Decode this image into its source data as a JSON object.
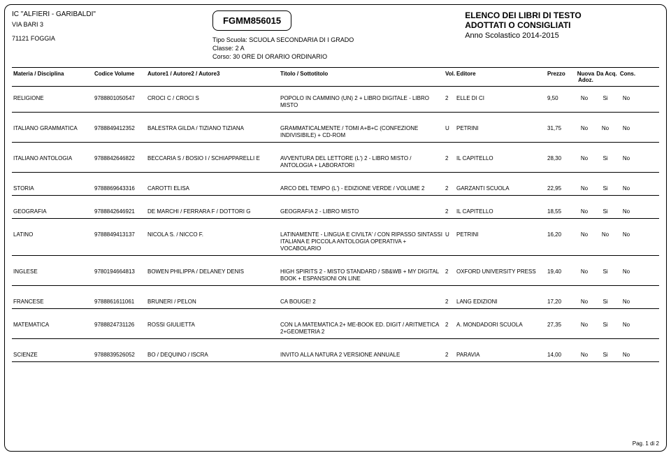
{
  "header": {
    "school_name": "IC \"ALFIERI - GARIBALDI\"",
    "address": "VIA BARI 3",
    "city_zip": "71121  FOGGIA",
    "school_code": "FGMM856015",
    "tipo_scuola_label": "Tipo Scuola:",
    "tipo_scuola": "SCUOLA SECONDARIA DI I GRADO",
    "classe_label": "Classe:",
    "classe": "2 A",
    "corso_label": "Corso:",
    "corso": "30 ORE DI ORARIO ORDINARIO",
    "right_title1": "ELENCO DEI LIBRI DI TESTO",
    "right_title2": "ADOTTATI O CONSIGLIATI",
    "right_year": "Anno Scolastico 2014-2015"
  },
  "columns": {
    "materia": "Materia / Disciplina",
    "codice": "Codice Volume",
    "autore": "Autore1 / Autore2 / Autore3",
    "titolo": "Titolo / Sottotitolo",
    "vol": "Vol.",
    "editore": "Editore",
    "prezzo": "Prezzo",
    "nuova": "Nuova Adoz.",
    "da": "Da Acq.",
    "cons": "Cons."
  },
  "rows": [
    {
      "materia": "RELIGIONE",
      "codice": "9788801050547",
      "autore": "CROCI C / CROCI S",
      "titolo": "POPOLO IN CAMMINO (UN) 2 + LIBRO DIGITALE - LIBRO MISTO",
      "vol": "2",
      "editore": "ELLE DI CI",
      "prezzo": "9,50",
      "nuova": "No",
      "da": "Si",
      "cons": "No"
    },
    {
      "materia": "ITALIANO GRAMMATICA",
      "codice": "9788849412352",
      "autore": "BALESTRA GILDA / TIZIANO TIZIANA",
      "titolo": "GRAMMATICALMENTE / TOMI A+B+C (CONFEZIONE INDIVISIBILE) + CD-ROM",
      "vol": "U",
      "editore": "PETRINI",
      "prezzo": "31,75",
      "nuova": "No",
      "da": "No",
      "cons": "No"
    },
    {
      "materia": "ITALIANO ANTOLOGIA",
      "codice": "9788842646822",
      "autore": "BECCARIA S / BOSIO I / SCHIAPPARELLI E",
      "titolo": "AVVENTURA DEL LETTORE (L') 2 - LIBRO MISTO / ANTOLOGIA + LABORATORI",
      "vol": "2",
      "editore": "IL CAPITELLO",
      "prezzo": "28,30",
      "nuova": "No",
      "da": "Si",
      "cons": "No"
    },
    {
      "materia": "STORIA",
      "codice": "9788869643316",
      "autore": "CAROTTI ELISA",
      "titolo": "ARCO DEL TEMPO (L') - EDIZIONE VERDE / VOLUME 2",
      "vol": "2",
      "editore": "GARZANTI SCUOLA",
      "prezzo": "22,95",
      "nuova": "No",
      "da": "Si",
      "cons": "No"
    },
    {
      "materia": "GEOGRAFIA",
      "codice": "9788842646921",
      "autore": "DE MARCHI / FERRARA F / DOTTORI G",
      "titolo": "GEOGRAFIA 2 - LIBRO MISTO",
      "vol": "2",
      "editore": "IL CAPITELLO",
      "prezzo": "18,55",
      "nuova": "No",
      "da": "Si",
      "cons": "No"
    },
    {
      "materia": "LATINO",
      "codice": "9788849413137",
      "autore": "NICOLA S. / NICCO F.",
      "titolo": "LATINAMENTE - LINGUA E CIVILTA' / CON RIPASSO SINTASSI ITALIANA E PICCOLA ANTOLOGIA OPERATIVA + VOCABOLARIO",
      "vol": "U",
      "editore": "PETRINI",
      "prezzo": "16,20",
      "nuova": "No",
      "da": "No",
      "cons": "No"
    },
    {
      "materia": "INGLESE",
      "codice": "9780194664813",
      "autore": "BOWEN PHILIPPA / DELANEY DENIS",
      "titolo": "HIGH SPIRITS  2 - MISTO STANDARD / SB&WB + MY DIGITAL BOOK + ESPANSIONI ON LINE",
      "vol": "2",
      "editore": "OXFORD UNIVERSITY PRESS",
      "prezzo": "19,40",
      "nuova": "No",
      "da": "Si",
      "cons": "No"
    },
    {
      "materia": "FRANCESE",
      "codice": "9788861611061",
      "autore": "BRUNERI / PELON",
      "titolo": "CA BOUGE! 2",
      "vol": "2",
      "editore": "LANG EDIZIONI",
      "prezzo": "17,20",
      "nuova": "No",
      "da": "Si",
      "cons": "No"
    },
    {
      "materia": "MATEMATICA",
      "codice": "9788824731126",
      "autore": "ROSSI GIULIETTA",
      "titolo": "CON LA MATEMATICA 2+ ME-BOOK  ED. DIGIT / ARITMETICA 2+GEOMETRIA 2",
      "vol": "2",
      "editore": "A. MONDADORI SCUOLA",
      "prezzo": "27,35",
      "nuova": "No",
      "da": "Si",
      "cons": "No"
    },
    {
      "materia": "SCIENZE",
      "codice": "9788839526052",
      "autore": "BO / DEQUINO / ISCRA",
      "titolo": "INVITO ALLA NATURA 2 VERSIONE ANNUALE",
      "vol": "2",
      "editore": "PARAVIA",
      "prezzo": "14,00",
      "nuova": "No",
      "da": "Si",
      "cons": "No"
    }
  ],
  "footer": {
    "page": "Pag. 1  di  2"
  }
}
